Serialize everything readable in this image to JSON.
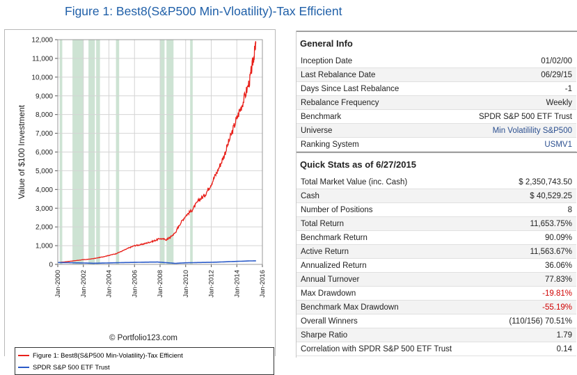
{
  "figure_title": "Figure 1:  Best8(S&P500 Min-Vloatility)-Tax Efficient",
  "copyright": "© Portfolio123.com",
  "colors": {
    "portfolio": "#e8201a",
    "benchmark": "#2a5ac8",
    "shade": "#cde3d3",
    "title": "#1f5fa8"
  },
  "chart_data": {
    "type": "line",
    "title": "",
    "xlabel": "",
    "ylabel": "Value of $100 Investment",
    "ylim": [
      0,
      12000
    ],
    "xlim": [
      2000,
      2016
    ],
    "y_ticks": [
      "0",
      "1,000",
      "2,000",
      "3,000",
      "4,000",
      "5,000",
      "6,000",
      "7,000",
      "8,000",
      "9,000",
      "10,000",
      "11,000",
      "12,000"
    ],
    "x_ticks": [
      "Jan-2000",
      "Jan-2002",
      "Jan-2004",
      "Jan-2006",
      "Jan-2008",
      "Jan-2010",
      "Jan-2012",
      "Jan-2014",
      "Jan-2016"
    ],
    "grid": true,
    "legend_position": "bottom",
    "shaded_periods": [
      [
        2000.15,
        2000.35
      ],
      [
        2001.15,
        2002.0
      ],
      [
        2002.4,
        2002.9
      ],
      [
        2003.0,
        2003.3
      ],
      [
        2004.55,
        2004.8
      ],
      [
        2008.0,
        2008.35
      ],
      [
        2008.5,
        2009.05
      ],
      [
        2010.35,
        2010.55
      ]
    ],
    "series": [
      {
        "name": "Figure 1:  Best8(S&P500 Min-Volatility)-Tax Efficient",
        "x": [
          2000.0,
          2000.5,
          2001.0,
          2001.5,
          2002.0,
          2002.5,
          2003.0,
          2003.5,
          2004.0,
          2004.5,
          2005.0,
          2005.5,
          2006.0,
          2006.5,
          2007.0,
          2007.5,
          2008.0,
          2008.5,
          2008.8,
          2009.2,
          2009.5,
          2010.0,
          2010.5,
          2011.0,
          2011.5,
          2012.0,
          2012.5,
          2013.0,
          2013.5,
          2014.0,
          2014.5,
          2015.0,
          2015.3,
          2015.5
        ],
        "y": [
          100,
          130,
          170,
          210,
          250,
          280,
          330,
          400,
          480,
          560,
          700,
          860,
          1000,
          1050,
          1150,
          1250,
          1380,
          1320,
          1450,
          1700,
          2100,
          2600,
          2900,
          3400,
          3700,
          4300,
          5000,
          5800,
          6800,
          7800,
          8700,
          9800,
          11000,
          11800
        ]
      },
      {
        "name": "SPDR S&P 500 ETF Trust",
        "x": [
          2000.0,
          2001.0,
          2002.0,
          2002.8,
          2003.5,
          2005.0,
          2007.0,
          2007.8,
          2008.5,
          2009.2,
          2010.0,
          2011.0,
          2012.0,
          2013.0,
          2014.0,
          2015.0,
          2015.5
        ],
        "y": [
          100,
          90,
          75,
          60,
          70,
          95,
          120,
          125,
          90,
          55,
          85,
          100,
          110,
          135,
          160,
          185,
          190
        ]
      }
    ]
  },
  "general_info": {
    "title": "General Info",
    "rows": [
      {
        "label": "Inception Date",
        "value": "01/02/00",
        "style": ""
      },
      {
        "label": "Last Rebalance Date",
        "value": "06/29/15",
        "style": ""
      },
      {
        "label": "Days Since Last Rebalance",
        "value": "-1",
        "style": ""
      },
      {
        "label": "Rebalance Frequency",
        "value": "Weekly",
        "style": ""
      },
      {
        "label": "Benchmark",
        "value": "SPDR S&P 500 ETF Trust",
        "style": ""
      },
      {
        "label": "Universe",
        "value": "Min Volatilility S&P500",
        "style": "link"
      },
      {
        "label": "Ranking System",
        "value": "USMV1",
        "style": "link"
      }
    ]
  },
  "quick_stats": {
    "title": "Quick Stats as of 6/27/2015",
    "rows": [
      {
        "label": "Total Market Value (inc. Cash)",
        "value": "$ 2,350,743.50",
        "style": ""
      },
      {
        "label": "Cash",
        "value": "$ 40,529.25",
        "style": ""
      },
      {
        "label": "Number of Positions",
        "value": "8",
        "style": ""
      },
      {
        "label": "Total Return",
        "value": "11,653.75%",
        "style": ""
      },
      {
        "label": "Benchmark Return",
        "value": "90.09%",
        "style": ""
      },
      {
        "label": "Active Return",
        "value": "11,563.67%",
        "style": ""
      },
      {
        "label": "Annualized Return",
        "value": "36.06%",
        "style": ""
      },
      {
        "label": "Annual Turnover",
        "value": "77.83%",
        "style": ""
      },
      {
        "label": "Max Drawdown",
        "value": "-19.81%",
        "style": "neg"
      },
      {
        "label": "Benchmark Max Drawdown",
        "value": "-55.19%",
        "style": "neg"
      },
      {
        "label": "Overall Winners",
        "value": "(110/156) 70.51%",
        "style": ""
      },
      {
        "label": "Sharpe Ratio",
        "value": "1.79",
        "style": ""
      },
      {
        "label": "Correlation with SPDR S&P 500 ETF Trust",
        "value": "0.14",
        "style": ""
      }
    ]
  }
}
